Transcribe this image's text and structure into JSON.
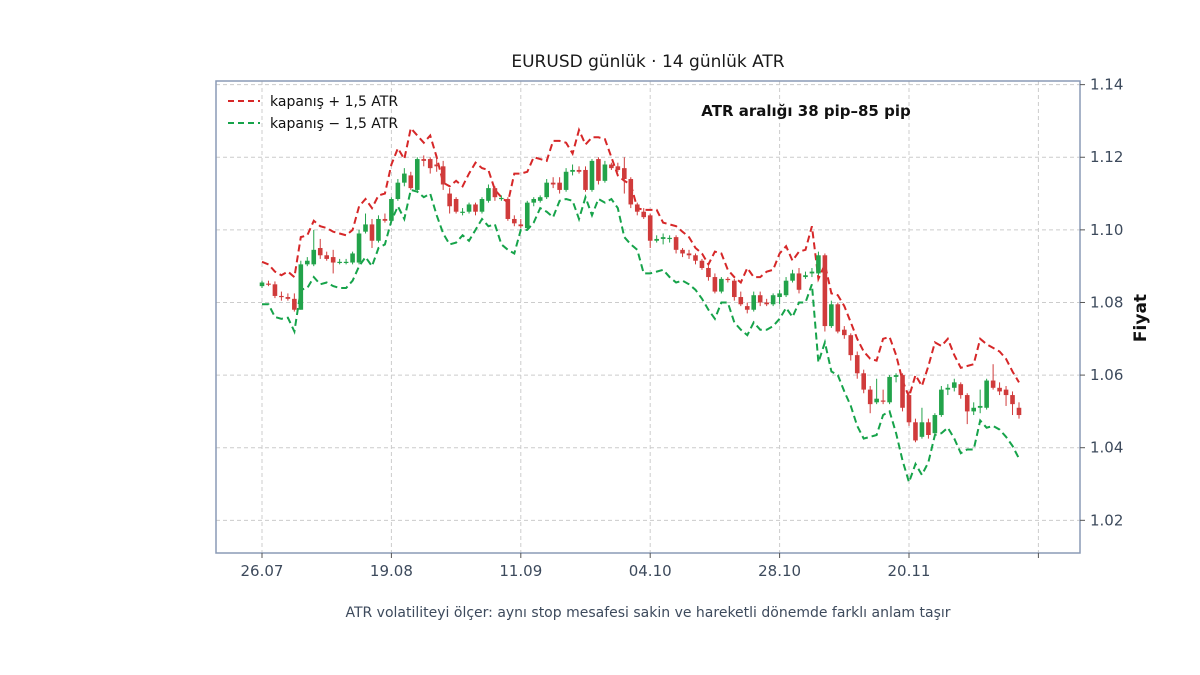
{
  "chart_data": {
    "type": "candlestick",
    "title": "EURUSD günlük · 14 günlük ATR",
    "ylabel": "Fiyat",
    "xlabel": "",
    "caption": "ATR volatiliteyi ölçer: aynı stop mesafesi sakin ve hareketli dönemde farklı anlam taşır",
    "annotation": "ATR aralığı 38 pip–85 pip",
    "ylim": [
      1.011,
      1.141
    ],
    "yticks": [
      1.02,
      1.04,
      1.06,
      1.08,
      1.1,
      1.12,
      1.14
    ],
    "ytick_labels": [
      "1.02",
      "1.04",
      "1.06",
      "1.08",
      "1.10",
      "1.12",
      "1.14"
    ],
    "xtick_labels": [
      "26.07",
      "19.08",
      "11.09",
      "04.10",
      "28.10",
      "20.11",
      ""
    ],
    "xtick_index": [
      0,
      20,
      40,
      60,
      80,
      100,
      120
    ],
    "grid": true,
    "legend_position": "top-left",
    "colors": {
      "up": "#22a34a",
      "down": "#d03b3b",
      "upper": "#d62728",
      "lower": "#16a34a",
      "frame": "#8a9ab5",
      "grid": "#cccccc",
      "tick_text": "#3d4a5c"
    },
    "series": [
      {
        "name": "kapanış + 1,5 ATR",
        "style": "dashed",
        "color": "#d62728",
        "values": [
          1.0912,
          1.0905,
          1.0885,
          1.0875,
          1.0885,
          1.087,
          1.098,
          1.0985,
          1.1025,
          1.101,
          1.1005,
          1.0995,
          1.099,
          1.0985,
          1.1,
          1.1065,
          1.1085,
          1.106,
          1.1095,
          1.11,
          1.118,
          1.1225,
          1.1195,
          1.128,
          1.126,
          1.124,
          1.126,
          1.12,
          1.113,
          1.112,
          1.1135,
          1.112,
          1.1155,
          1.1185,
          1.117,
          1.1165,
          1.111,
          1.109,
          1.1075,
          1.1155,
          1.1155,
          1.116,
          1.12,
          1.1195,
          1.119,
          1.1245,
          1.1245,
          1.124,
          1.121,
          1.1275,
          1.1235,
          1.1255,
          1.1255,
          1.125,
          1.12,
          1.115,
          1.1135,
          1.1125,
          1.106,
          1.1055,
          1.1055,
          1.1055,
          1.102,
          1.1015,
          1.101,
          1.0995,
          1.098,
          1.095,
          1.0935,
          1.0905,
          1.094,
          1.0935,
          1.089,
          1.087,
          1.0855,
          1.0895,
          1.087,
          1.087,
          1.0885,
          1.089,
          1.0935,
          1.0955,
          1.0915,
          1.094,
          1.0945,
          1.101,
          1.0865,
          1.0905,
          1.0825,
          1.082,
          1.079,
          1.0745,
          1.07,
          1.0665,
          1.0645,
          1.064,
          1.07,
          1.0705,
          1.0655,
          1.0585,
          1.054,
          1.06,
          1.057,
          1.0625,
          1.069,
          1.068,
          1.07,
          1.0655,
          1.062,
          1.0625,
          1.063,
          1.07,
          1.0685,
          1.0675,
          1.0665,
          1.0645,
          1.061,
          1.058
        ]
      },
      {
        "name": "kapanış − 1,5 ATR",
        "style": "dashed",
        "color": "#16a34a",
        "values": [
          1.0795,
          1.0795,
          1.076,
          1.0755,
          1.0758,
          1.072,
          1.0835,
          1.084,
          1.087,
          1.085,
          1.0855,
          1.0845,
          1.084,
          1.084,
          1.086,
          1.09,
          1.0925,
          1.09,
          1.095,
          1.096,
          1.1025,
          1.1065,
          1.103,
          1.111,
          1.1105,
          1.109,
          1.11,
          1.104,
          1.099,
          1.096,
          1.0965,
          1.0985,
          1.097,
          1.1,
          1.103,
          1.101,
          1.1015,
          1.096,
          1.0945,
          1.0935,
          1.1,
          1.1,
          1.102,
          1.106,
          1.105,
          1.1035,
          1.108,
          1.1085,
          1.108,
          1.103,
          1.109,
          1.104,
          1.1085,
          1.1075,
          1.1085,
          1.106,
          1.098,
          1.096,
          1.0945,
          1.088,
          1.088,
          1.0885,
          1.089,
          1.087,
          1.0855,
          1.086,
          1.085,
          1.0835,
          1.081,
          1.078,
          1.0755,
          1.08,
          1.08,
          1.0745,
          1.0725,
          1.071,
          1.0745,
          1.0725,
          1.0725,
          1.0735,
          1.0755,
          1.0785,
          1.076,
          1.08,
          1.08,
          1.085,
          1.0635,
          1.069,
          1.061,
          1.06,
          1.0555,
          1.0515,
          1.046,
          1.0425,
          1.043,
          1.0435,
          1.049,
          1.05,
          1.044,
          1.0365,
          1.0305,
          1.0355,
          1.0325,
          1.036,
          1.0435,
          1.044,
          1.0455,
          1.0425,
          1.0385,
          1.0395,
          1.0395,
          1.0475,
          1.0455,
          1.046,
          1.045,
          1.043,
          1.0405,
          1.037
        ]
      }
    ],
    "candles": [
      {
        "o": 1.0845,
        "h": 1.086,
        "l": 1.084,
        "c": 1.0855
      },
      {
        "o": 1.0852,
        "h": 1.086,
        "l": 1.0845,
        "c": 1.085
      },
      {
        "o": 1.085,
        "h": 1.0858,
        "l": 1.0812,
        "c": 1.0818
      },
      {
        "o": 1.0818,
        "h": 1.083,
        "l": 1.0805,
        "c": 1.0815
      },
      {
        "o": 1.0815,
        "h": 1.0825,
        "l": 1.0805,
        "c": 1.081
      },
      {
        "o": 1.081,
        "h": 1.0825,
        "l": 1.0775,
        "c": 1.078
      },
      {
        "o": 1.078,
        "h": 1.0915,
        "l": 1.078,
        "c": 1.0905
      },
      {
        "o": 1.0905,
        "h": 1.0925,
        "l": 1.09,
        "c": 1.0915
      },
      {
        "o": 1.0905,
        "h": 1.1,
        "l": 1.09,
        "c": 1.0945
      },
      {
        "o": 1.095,
        "h": 1.0975,
        "l": 1.092,
        "c": 1.093
      },
      {
        "o": 1.093,
        "h": 1.094,
        "l": 1.0915,
        "c": 1.092
      },
      {
        "o": 1.0925,
        "h": 1.0945,
        "l": 1.088,
        "c": 1.091
      },
      {
        "o": 1.091,
        "h": 1.092,
        "l": 1.0905,
        "c": 1.0912
      },
      {
        "o": 1.091,
        "h": 1.092,
        "l": 1.0905,
        "c": 1.0912
      },
      {
        "o": 1.091,
        "h": 1.094,
        "l": 1.0905,
        "c": 1.0935
      },
      {
        "o": 1.091,
        "h": 1.1,
        "l": 1.0905,
        "c": 1.099
      },
      {
        "o": 1.0995,
        "h": 1.1045,
        "l": 1.099,
        "c": 1.1015
      },
      {
        "o": 1.1015,
        "h": 1.103,
        "l": 1.095,
        "c": 1.097
      },
      {
        "o": 1.097,
        "h": 1.104,
        "l": 1.0965,
        "c": 1.103
      },
      {
        "o": 1.103,
        "h": 1.1045,
        "l": 1.102,
        "c": 1.1025
      },
      {
        "o": 1.1025,
        "h": 1.109,
        "l": 1.102,
        "c": 1.1085
      },
      {
        "o": 1.1085,
        "h": 1.114,
        "l": 1.108,
        "c": 1.113
      },
      {
        "o": 1.113,
        "h": 1.117,
        "l": 1.112,
        "c": 1.1155
      },
      {
        "o": 1.115,
        "h": 1.116,
        "l": 1.111,
        "c": 1.1115
      },
      {
        "o": 1.111,
        "h": 1.12,
        "l": 1.1105,
        "c": 1.1195
      },
      {
        "o": 1.1195,
        "h": 1.1205,
        "l": 1.1175,
        "c": 1.119
      },
      {
        "o": 1.1195,
        "h": 1.12,
        "l": 1.1155,
        "c": 1.117
      },
      {
        "o": 1.118,
        "h": 1.12,
        "l": 1.116,
        "c": 1.1175
      },
      {
        "o": 1.1175,
        "h": 1.119,
        "l": 1.111,
        "c": 1.1125
      },
      {
        "o": 1.11,
        "h": 1.1115,
        "l": 1.1045,
        "c": 1.1065
      },
      {
        "o": 1.1085,
        "h": 1.109,
        "l": 1.1045,
        "c": 1.105
      },
      {
        "o": 1.105,
        "h": 1.106,
        "l": 1.104,
        "c": 1.105
      },
      {
        "o": 1.105,
        "h": 1.1075,
        "l": 1.1045,
        "c": 1.107
      },
      {
        "o": 1.107,
        "h": 1.1075,
        "l": 1.104,
        "c": 1.105
      },
      {
        "o": 1.105,
        "h": 1.109,
        "l": 1.1045,
        "c": 1.1085
      },
      {
        "o": 1.108,
        "h": 1.1125,
        "l": 1.1075,
        "c": 1.1115
      },
      {
        "o": 1.1115,
        "h": 1.112,
        "l": 1.108,
        "c": 1.109
      },
      {
        "o": 1.1085,
        "h": 1.1095,
        "l": 1.108,
        "c": 1.1088
      },
      {
        "o": 1.1085,
        "h": 1.109,
        "l": 1.1025,
        "c": 1.103
      },
      {
        "o": 1.103,
        "h": 1.104,
        "l": 1.101,
        "c": 1.1018
      },
      {
        "o": 1.1015,
        "h": 1.103,
        "l": 1.1005,
        "c": 1.101
      },
      {
        "o": 1.1005,
        "h": 1.108,
        "l": 1.1,
        "c": 1.1075
      },
      {
        "o": 1.1075,
        "h": 1.109,
        "l": 1.1065,
        "c": 1.1085
      },
      {
        "o": 1.108,
        "h": 1.1095,
        "l": 1.1075,
        "c": 1.109
      },
      {
        "o": 1.109,
        "h": 1.114,
        "l": 1.1085,
        "c": 1.113
      },
      {
        "o": 1.113,
        "h": 1.1145,
        "l": 1.1115,
        "c": 1.1125
      },
      {
        "o": 1.113,
        "h": 1.1145,
        "l": 1.11,
        "c": 1.111
      },
      {
        "o": 1.111,
        "h": 1.117,
        "l": 1.1105,
        "c": 1.116
      },
      {
        "o": 1.116,
        "h": 1.118,
        "l": 1.115,
        "c": 1.1165
      },
      {
        "o": 1.1165,
        "h": 1.1175,
        "l": 1.1155,
        "c": 1.116
      },
      {
        "o": 1.1165,
        "h": 1.1175,
        "l": 1.1105,
        "c": 1.111
      },
      {
        "o": 1.111,
        "h": 1.1195,
        "l": 1.1105,
        "c": 1.119
      },
      {
        "o": 1.1195,
        "h": 1.12,
        "l": 1.1125,
        "c": 1.1135
      },
      {
        "o": 1.1135,
        "h": 1.119,
        "l": 1.113,
        "c": 1.118
      },
      {
        "o": 1.118,
        "h": 1.1185,
        "l": 1.1165,
        "c": 1.117
      },
      {
        "o": 1.1175,
        "h": 1.1185,
        "l": 1.116,
        "c": 1.1165
      },
      {
        "o": 1.117,
        "h": 1.12,
        "l": 1.11,
        "c": 1.114
      },
      {
        "o": 1.114,
        "h": 1.1145,
        "l": 1.106,
        "c": 1.107
      },
      {
        "o": 1.107,
        "h": 1.1075,
        "l": 1.104,
        "c": 1.105
      },
      {
        "o": 1.105,
        "h": 1.106,
        "l": 1.103,
        "c": 1.1035
      },
      {
        "o": 1.104,
        "h": 1.1045,
        "l": 1.095,
        "c": 1.097
      },
      {
        "o": 1.097,
        "h": 1.0985,
        "l": 1.0965,
        "c": 1.0975
      },
      {
        "o": 1.0975,
        "h": 1.099,
        "l": 1.096,
        "c": 1.098
      },
      {
        "o": 1.0975,
        "h": 1.0985,
        "l": 1.0965,
        "c": 1.0978
      },
      {
        "o": 1.098,
        "h": 1.0985,
        "l": 1.0935,
        "c": 1.0945
      },
      {
        "o": 1.0945,
        "h": 1.095,
        "l": 1.0925,
        "c": 1.0935
      },
      {
        "o": 1.0935,
        "h": 1.0945,
        "l": 1.092,
        "c": 1.093
      },
      {
        "o": 1.093,
        "h": 1.0935,
        "l": 1.0905,
        "c": 1.0915
      },
      {
        "o": 1.0915,
        "h": 1.092,
        "l": 1.089,
        "c": 1.0895
      },
      {
        "o": 1.0895,
        "h": 1.09,
        "l": 1.086,
        "c": 1.087
      },
      {
        "o": 1.087,
        "h": 1.088,
        "l": 1.0825,
        "c": 1.083
      },
      {
        "o": 1.083,
        "h": 1.087,
        "l": 1.0825,
        "c": 1.0865
      },
      {
        "o": 1.0865,
        "h": 1.087,
        "l": 1.0855,
        "c": 1.0862
      },
      {
        "o": 1.086,
        "h": 1.0865,
        "l": 1.0805,
        "c": 1.0815
      },
      {
        "o": 1.0815,
        "h": 1.083,
        "l": 1.079,
        "c": 1.0795
      },
      {
        "o": 1.079,
        "h": 1.08,
        "l": 1.077,
        "c": 1.078
      },
      {
        "o": 1.078,
        "h": 1.083,
        "l": 1.0775,
        "c": 1.082
      },
      {
        "o": 1.082,
        "h": 1.083,
        "l": 1.079,
        "c": 1.08
      },
      {
        "o": 1.08,
        "h": 1.081,
        "l": 1.079,
        "c": 1.0795
      },
      {
        "o": 1.0795,
        "h": 1.0825,
        "l": 1.079,
        "c": 1.082
      },
      {
        "o": 1.0815,
        "h": 1.0835,
        "l": 1.0795,
        "c": 1.0825
      },
      {
        "o": 1.082,
        "h": 1.087,
        "l": 1.0815,
        "c": 1.086
      },
      {
        "o": 1.086,
        "h": 1.089,
        "l": 1.0855,
        "c": 1.088
      },
      {
        "o": 1.088,
        "h": 1.0895,
        "l": 1.0825,
        "c": 1.0835
      },
      {
        "o": 1.087,
        "h": 1.0885,
        "l": 1.0865,
        "c": 1.0875
      },
      {
        "o": 1.088,
        "h": 1.0895,
        "l": 1.087,
        "c": 1.0885
      },
      {
        "o": 1.088,
        "h": 1.094,
        "l": 1.0875,
        "c": 1.093
      },
      {
        "o": 1.093,
        "h": 1.0935,
        "l": 1.072,
        "c": 1.0735
      },
      {
        "o": 1.0735,
        "h": 1.0805,
        "l": 1.073,
        "c": 1.0795
      },
      {
        "o": 1.0795,
        "h": 1.08,
        "l": 1.0715,
        "c": 1.072
      },
      {
        "o": 1.0725,
        "h": 1.0735,
        "l": 1.07,
        "c": 1.071
      },
      {
        "o": 1.071,
        "h": 1.0715,
        "l": 1.064,
        "c": 1.0655
      },
      {
        "o": 1.0655,
        "h": 1.0665,
        "l": 1.059,
        "c": 1.0605
      },
      {
        "o": 1.0605,
        "h": 1.0615,
        "l": 1.055,
        "c": 1.056
      },
      {
        "o": 1.056,
        "h": 1.057,
        "l": 1.0495,
        "c": 1.052
      },
      {
        "o": 1.0525,
        "h": 1.059,
        "l": 1.052,
        "c": 1.0535
      },
      {
        "o": 1.053,
        "h": 1.056,
        "l": 1.052,
        "c": 1.0528
      },
      {
        "o": 1.0525,
        "h": 1.06,
        "l": 1.052,
        "c": 1.0595
      },
      {
        "o": 1.0595,
        "h": 1.0605,
        "l": 1.058,
        "c": 1.06
      },
      {
        "o": 1.06,
        "h": 1.0605,
        "l": 1.05,
        "c": 1.051
      },
      {
        "o": 1.0545,
        "h": 1.0555,
        "l": 1.046,
        "c": 1.047
      },
      {
        "o": 1.047,
        "h": 1.048,
        "l": 1.0415,
        "c": 1.042
      },
      {
        "o": 1.043,
        "h": 1.051,
        "l": 1.0425,
        "c": 1.047
      },
      {
        "o": 1.047,
        "h": 1.048,
        "l": 1.0425,
        "c": 1.0435
      },
      {
        "o": 1.044,
        "h": 1.0495,
        "l": 1.0435,
        "c": 1.049
      },
      {
        "o": 1.049,
        "h": 1.057,
        "l": 1.0485,
        "c": 1.056
      },
      {
        "o": 1.056,
        "h": 1.0575,
        "l": 1.0545,
        "c": 1.0565
      },
      {
        "o": 1.0565,
        "h": 1.059,
        "l": 1.0555,
        "c": 1.058
      },
      {
        "o": 1.0575,
        "h": 1.058,
        "l": 1.0535,
        "c": 1.0545
      },
      {
        "o": 1.0545,
        "h": 1.055,
        "l": 1.0465,
        "c": 1.05
      },
      {
        "o": 1.05,
        "h": 1.0525,
        "l": 1.049,
        "c": 1.051
      },
      {
        "o": 1.051,
        "h": 1.056,
        "l": 1.0495,
        "c": 1.0515
      },
      {
        "o": 1.051,
        "h": 1.059,
        "l": 1.0505,
        "c": 1.0585
      },
      {
        "o": 1.0585,
        "h": 1.063,
        "l": 1.056,
        "c": 1.0565
      },
      {
        "o": 1.0565,
        "h": 1.058,
        "l": 1.0545,
        "c": 1.0555
      },
      {
        "o": 1.056,
        "h": 1.057,
        "l": 1.0515,
        "c": 1.0545
      },
      {
        "o": 1.0545,
        "h": 1.0555,
        "l": 1.049,
        "c": 1.052
      },
      {
        "o": 1.051,
        "h": 1.0525,
        "l": 1.048,
        "c": 1.049
      }
    ]
  }
}
